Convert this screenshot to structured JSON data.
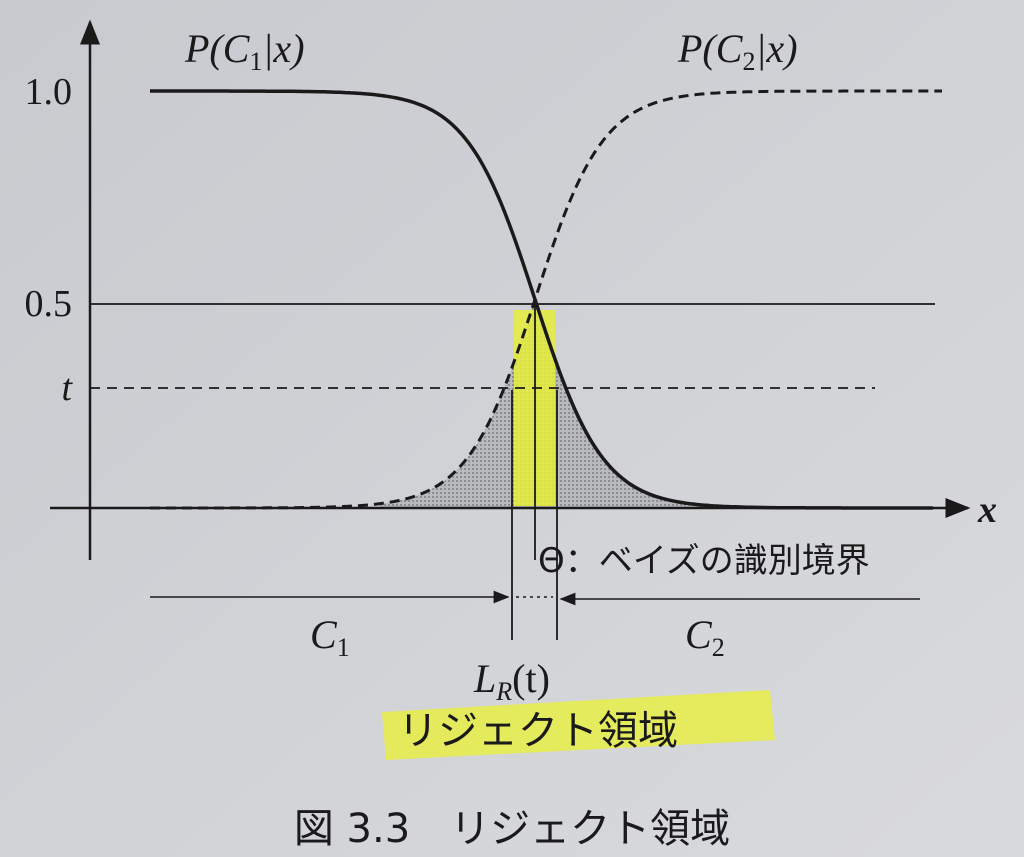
{
  "curve_labels": {
    "c1": {
      "head": "P(C",
      "sub": "1",
      "tail": "|x)"
    },
    "c2": {
      "head": "P(C",
      "sub": "2",
      "tail": "|x)"
    }
  },
  "axis": {
    "y_high": "1.0",
    "y_mid": "0.5",
    "y_t": "t",
    "x": "x"
  },
  "boundary_label": "Θ：ベイズの識別境界",
  "regions": {
    "c1": {
      "head": "C",
      "sub": "1"
    },
    "c2": {
      "head": "C",
      "sub": "2"
    },
    "reject": {
      "head": "L",
      "sub": "R",
      "tail": "(t)"
    },
    "reject_name": "リジェクト領域"
  },
  "caption": "図 3.3　リジェクト領域"
}
